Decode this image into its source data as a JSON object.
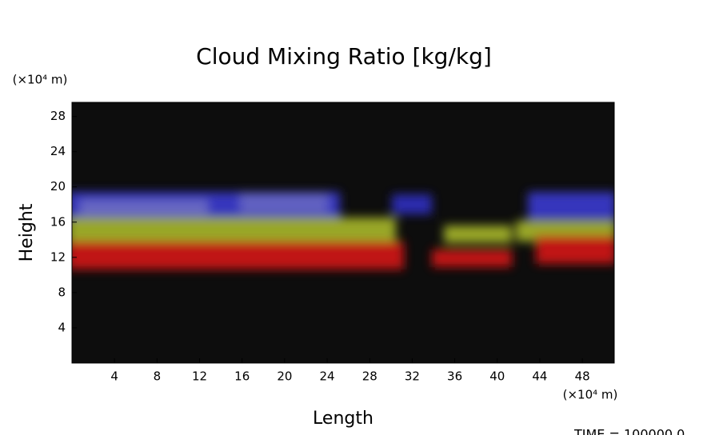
{
  "chart_data": {
    "type": "image",
    "title": "Cloud Mixing Ratio [kg/kg]",
    "x_label": "Length",
    "y_label": "Height",
    "x_unit": "(×10⁴ m)",
    "y_unit": "(×10⁴ m)",
    "annotation": "TIME = 100000.0",
    "xlim": [
      0,
      51
    ],
    "ylim": [
      0,
      29.6
    ],
    "xticks": [
      4,
      8,
      12,
      16,
      20,
      24,
      28,
      32,
      36,
      40,
      44,
      48
    ],
    "yticks": [
      4,
      8,
      12,
      16,
      20,
      24,
      28
    ],
    "background": "#0d0d0d"
  }
}
